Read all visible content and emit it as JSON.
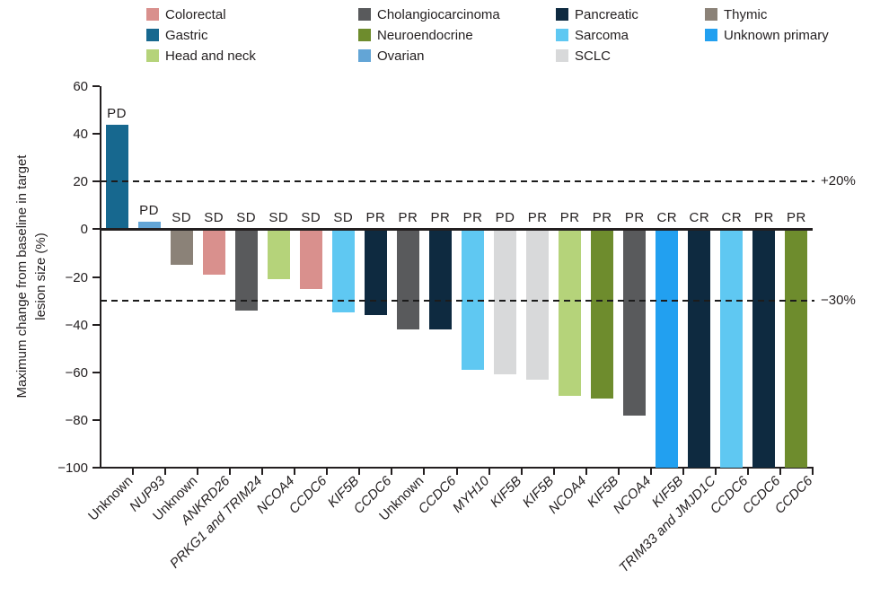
{
  "chart_data": {
    "type": "bar",
    "subtype": "waterfall",
    "ylabel": "Maximum change from baseline in target lesion size (%)",
    "ylabel_lines": [
      "Maximum change from baseline in target",
      "lesion size (%)"
    ],
    "ylim": [
      -100,
      60
    ],
    "grid": false,
    "legend_position": "top",
    "yticks": [
      {
        "value": 60,
        "label": "60"
      },
      {
        "value": 40,
        "label": "40"
      },
      {
        "value": 20,
        "label": "20"
      },
      {
        "value": 0,
        "label": "0"
      },
      {
        "value": -20,
        "label": "−20"
      },
      {
        "value": -40,
        "label": "−40"
      },
      {
        "value": -60,
        "label": "−60"
      },
      {
        "value": -80,
        "label": "−80"
      },
      {
        "value": -100,
        "label": "−100"
      }
    ],
    "reference_lines": [
      {
        "value": 20,
        "label": "+20%"
      },
      {
        "value": -30,
        "label": "−30%"
      }
    ],
    "colors": {
      "Colorectal": "#d9908d",
      "Gastric": "#17688f",
      "Head and neck": "#b5d37a",
      "Cholangiocarcinoma": "#595a5c",
      "Neuroendocrine": "#6e8c2d",
      "Ovarian": "#63a5d6",
      "Pancreatic": "#0e2a40",
      "Sarcoma": "#5fc8f2",
      "SCLC": "#d8d9da",
      "Thymic": "#8b8278",
      "Unknown primary": "#22a0f0"
    },
    "legend_columns": [
      [
        "Colorectal",
        "Gastric",
        "Head and neck"
      ],
      [
        "Cholangiocarcinoma",
        "Neuroendocrine",
        "Ovarian"
      ],
      [
        "Pancreatic",
        "Sarcoma",
        "SCLC"
      ],
      [
        "Thymic",
        "Unknown primary"
      ]
    ],
    "bars": [
      {
        "fusion": "Unknown",
        "italic": false,
        "cancer": "Gastric",
        "value": 44,
        "response": "PD"
      },
      {
        "fusion": "NUP93",
        "italic": true,
        "cancer": "Ovarian",
        "value": 3,
        "response": "PD"
      },
      {
        "fusion": "Unknown",
        "italic": false,
        "cancer": "Thymic",
        "value": -15,
        "response": "SD"
      },
      {
        "fusion": "ANKRD26",
        "italic": true,
        "cancer": "Colorectal",
        "value": -19,
        "response": "SD"
      },
      {
        "fusion": "PRKG1 and TRIM24",
        "italic": true,
        "cancer": "Cholangiocarcinoma",
        "value": -34,
        "response": "SD"
      },
      {
        "fusion": "NCOA4",
        "italic": true,
        "cancer": "Head and neck",
        "value": -21,
        "response": "SD"
      },
      {
        "fusion": "CCDC6",
        "italic": true,
        "cancer": "Colorectal",
        "value": -25,
        "response": "SD"
      },
      {
        "fusion": "KIF5B",
        "italic": true,
        "cancer": "Sarcoma",
        "value": -35,
        "response": "SD"
      },
      {
        "fusion": "CCDC6",
        "italic": true,
        "cancer": "Pancreatic",
        "value": -36,
        "response": "PR"
      },
      {
        "fusion": "Unknown",
        "italic": false,
        "cancer": "Cholangiocarcinoma",
        "value": -42,
        "response": "PR"
      },
      {
        "fusion": "CCDC6",
        "italic": true,
        "cancer": "Pancreatic",
        "value": -42,
        "response": "PR"
      },
      {
        "fusion": "MYH10",
        "italic": true,
        "cancer": "Sarcoma",
        "value": -59,
        "response": "PR"
      },
      {
        "fusion": "KIF5B",
        "italic": true,
        "cancer": "SCLC",
        "value": -61,
        "response": "PD"
      },
      {
        "fusion": "KIF5B",
        "italic": true,
        "cancer": "SCLC",
        "value": -63,
        "response": "PR"
      },
      {
        "fusion": "NCOA4",
        "italic": true,
        "cancer": "Head and neck",
        "value": -70,
        "response": "PR"
      },
      {
        "fusion": "KIF5B",
        "italic": true,
        "cancer": "Neuroendocrine",
        "value": -71,
        "response": "PR"
      },
      {
        "fusion": "NCOA4",
        "italic": true,
        "cancer": "Cholangiocarcinoma",
        "value": -78,
        "response": "PR"
      },
      {
        "fusion": "KIF5B",
        "italic": true,
        "cancer": "Unknown primary",
        "value": -100,
        "response": "CR"
      },
      {
        "fusion": "TRIM33 and JMJD1C",
        "italic": true,
        "cancer": "Pancreatic",
        "value": -100,
        "response": "CR"
      },
      {
        "fusion": "CCDC6",
        "italic": true,
        "cancer": "Sarcoma",
        "value": -100,
        "response": "CR"
      },
      {
        "fusion": "CCDC6",
        "italic": true,
        "cancer": "Pancreatic",
        "value": -100,
        "response": "PR"
      },
      {
        "fusion": "CCDC6",
        "italic": true,
        "cancer": "Neuroendocrine",
        "value": -100,
        "response": "PR"
      }
    ]
  }
}
